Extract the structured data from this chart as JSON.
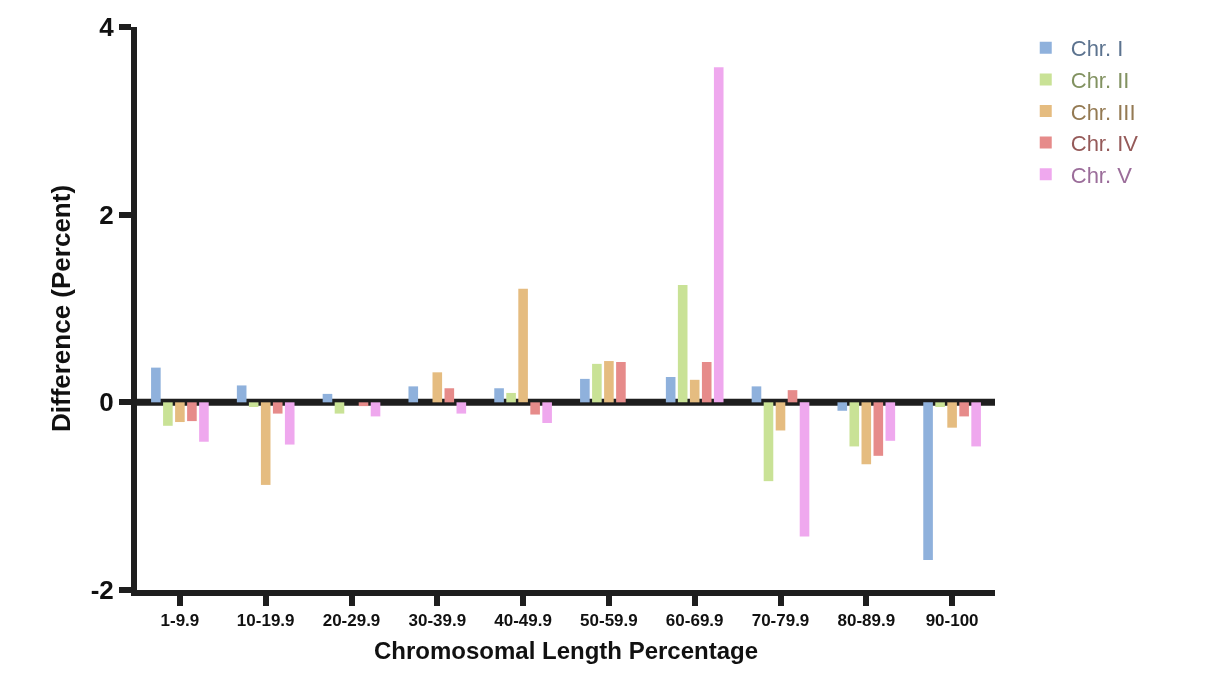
{
  "chart_data": {
    "type": "bar",
    "xlabel": "Chromosomal Length Percentage",
    "ylabel": "Difference (Percent)",
    "categories": [
      "1-9.9",
      "10-19.9",
      "20-29.9",
      "30-39.9",
      "40-49.9",
      "50-59.9",
      "60-69.9",
      "70-79.9",
      "80-89.9",
      "90-100"
    ],
    "series": [
      {
        "name": "Chr. I",
        "color": "#8fb1dc",
        "values": [
          0.37,
          0.18,
          0.09,
          0.17,
          0.15,
          0.25,
          0.27,
          0.17,
          -0.09,
          -1.68
        ]
      },
      {
        "name": "Chr. II",
        "color": "#c9e296",
        "values": [
          -0.25,
          -0.05,
          -0.12,
          null,
          0.1,
          0.41,
          1.25,
          -0.84,
          -0.47,
          -0.05
        ]
      },
      {
        "name": "Chr. III",
        "color": "#e5bc80",
        "values": [
          -0.21,
          -0.88,
          null,
          0.32,
          1.21,
          0.44,
          0.24,
          -0.3,
          -0.66,
          -0.27
        ]
      },
      {
        "name": "Chr. IV",
        "color": "#e68b8a",
        "values": [
          -0.2,
          -0.12,
          -0.04,
          0.15,
          -0.13,
          0.43,
          0.43,
          0.13,
          -0.57,
          -0.15
        ]
      },
      {
        "name": "Chr. V",
        "color": "#efa8ee",
        "values": [
          -0.42,
          -0.45,
          -0.15,
          -0.12,
          -0.22,
          null,
          3.57,
          -1.43,
          -0.41,
          -0.47
        ]
      }
    ],
    "ref_lines": [
      {
        "axis": "y",
        "value": 0,
        "color": "#1e1e1e"
      }
    ],
    "ylim": [
      -2,
      4
    ],
    "yticks": [
      -2,
      0,
      2,
      4
    ],
    "legend": "top right"
  }
}
